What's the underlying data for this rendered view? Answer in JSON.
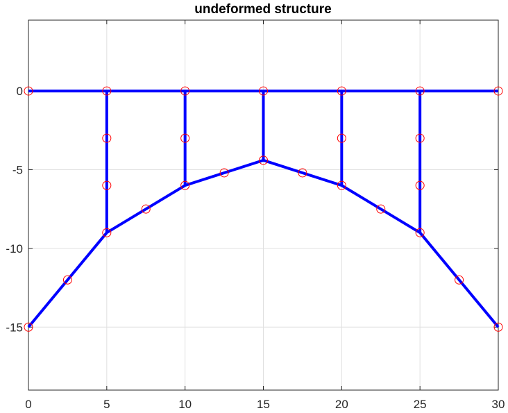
{
  "chart_data": {
    "type": "line",
    "title": "undeformed structure",
    "xlabel": "",
    "ylabel": "",
    "xlim": [
      0,
      30
    ],
    "ylim": [
      -19,
      4.5
    ],
    "xticks": [
      0,
      5,
      10,
      15,
      20,
      25,
      30
    ],
    "yticks": [
      0,
      -5,
      -10,
      -15
    ],
    "xtick_labels": [
      "0",
      "5",
      "10",
      "15",
      "20",
      "25",
      "30"
    ],
    "ytick_labels": [
      "0",
      "-5",
      "-10",
      "-15"
    ],
    "grid": true,
    "legend": "none",
    "colors": {
      "member": "#0000ff",
      "node": "#ff0000",
      "grid": "#e0e0e0",
      "axis": "#262626"
    },
    "series": [
      {
        "name": "",
        "role": "top-chord",
        "x": [
          0,
          30
        ],
        "y": [
          0,
          0
        ]
      },
      {
        "name": "",
        "role": "arch",
        "x": [
          0,
          5,
          10,
          15,
          20,
          25,
          30
        ],
        "y": [
          -15,
          -9,
          -6,
          -4.4,
          -6,
          -9,
          -15
        ]
      },
      {
        "name": "",
        "role": "hanger",
        "x": [
          5,
          5
        ],
        "y": [
          0,
          -9
        ]
      },
      {
        "name": "",
        "role": "hanger",
        "x": [
          10,
          10
        ],
        "y": [
          0,
          -6
        ]
      },
      {
        "name": "",
        "role": "hanger",
        "x": [
          15,
          15
        ],
        "y": [
          0,
          -4.4
        ]
      },
      {
        "name": "",
        "role": "hanger",
        "x": [
          20,
          20
        ],
        "y": [
          0,
          -6
        ]
      },
      {
        "name": "",
        "role": "hanger",
        "x": [
          25,
          25
        ],
        "y": [
          0,
          -9
        ]
      }
    ],
    "nodes": {
      "x": [
        0,
        5,
        10,
        15,
        20,
        25,
        30,
        5,
        5,
        10,
        20,
        25,
        25,
        0,
        2.5,
        5,
        7.5,
        10,
        12.5,
        15,
        17.5,
        20,
        22.5,
        25,
        27.5,
        30
      ],
      "y": [
        0,
        0,
        0,
        0,
        0,
        0,
        0,
        -3,
        -6,
        -3,
        -3,
        -3,
        -6,
        -15,
        -12,
        -9,
        -7.5,
        -6,
        -5.2,
        -4.4,
        -5.2,
        -6,
        -7.5,
        -9,
        -12,
        -15
      ]
    }
  }
}
